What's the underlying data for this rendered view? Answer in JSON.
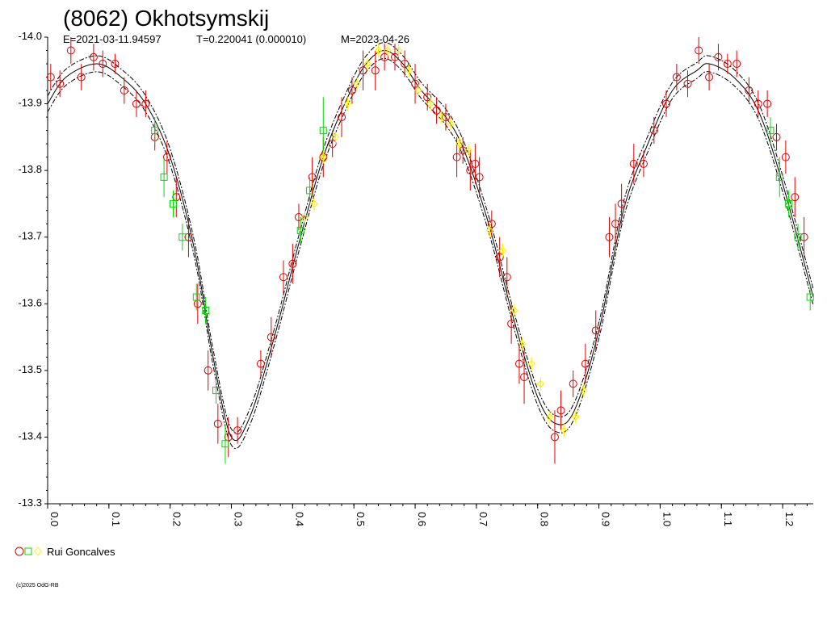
{
  "chart_data": {
    "type": "scatter",
    "title": "(8062) Okhotsymskij",
    "subtitle_parts": [
      "E=2021-03-11.94597",
      "T=0.220041 (0.000010)",
      "M=2023-04-26"
    ],
    "xlabel": "",
    "ylabel": "",
    "x_range": [
      0,
      1.25
    ],
    "y_range": [
      -14.0,
      -13.3
    ],
    "y_inverted": true,
    "x_ticks": [
      "0.0",
      "0.1",
      "0.2",
      "0.3",
      "0.4",
      "0.5",
      "0.6",
      "0.7",
      "0.8",
      "0.9",
      "1.0",
      "1.1",
      "1.2"
    ],
    "y_ticks": [
      "-14.0",
      "-13.9",
      "-13.8",
      "-13.7",
      "-13.6",
      "-13.5",
      "-13.4",
      "-13.3"
    ],
    "legend": {
      "label": "Rui Goncalves",
      "placement": "bottom-left"
    },
    "copyright": "(c)2025 OdG-RB",
    "fit_curve": [
      [
        0.0,
        -13.9
      ],
      [
        0.03,
        -13.94
      ],
      [
        0.08,
        -13.96
      ],
      [
        0.12,
        -13.94
      ],
      [
        0.16,
        -13.9
      ],
      [
        0.2,
        -13.82
      ],
      [
        0.24,
        -13.68
      ],
      [
        0.27,
        -13.52
      ],
      [
        0.3,
        -13.4
      ],
      [
        0.33,
        -13.43
      ],
      [
        0.37,
        -13.55
      ],
      [
        0.41,
        -13.69
      ],
      [
        0.45,
        -13.82
      ],
      [
        0.49,
        -13.91
      ],
      [
        0.52,
        -13.96
      ],
      [
        0.55,
        -13.98
      ],
      [
        0.58,
        -13.96
      ],
      [
        0.61,
        -13.92
      ],
      [
        0.65,
        -13.88
      ],
      [
        0.68,
        -13.83
      ],
      [
        0.72,
        -13.72
      ],
      [
        0.76,
        -13.58
      ],
      [
        0.8,
        -13.46
      ],
      [
        0.83,
        -13.42
      ],
      [
        0.86,
        -13.44
      ],
      [
        0.9,
        -13.56
      ],
      [
        0.94,
        -13.74
      ],
      [
        0.98,
        -13.84
      ],
      [
        1.02,
        -13.92
      ],
      [
        1.06,
        -13.95
      ],
      [
        1.08,
        -13.96
      ],
      [
        1.12,
        -13.94
      ],
      [
        1.16,
        -13.89
      ],
      [
        1.2,
        -13.78
      ],
      [
        1.25,
        -13.61
      ]
    ],
    "band_offset": 0.012,
    "series": [
      {
        "name": "Rui Goncalves",
        "marker": "circle",
        "color": "#dd0000",
        "points": [
          [
            0.005,
            -13.94,
            0.02
          ],
          [
            0.02,
            -13.93,
            0.02
          ],
          [
            0.038,
            -13.98,
            0.02
          ],
          [
            0.055,
            -13.94,
            0.02
          ],
          [
            0.075,
            -13.97,
            0.02
          ],
          [
            0.09,
            -13.96,
            0.02
          ],
          [
            0.11,
            -13.96,
            0.015
          ],
          [
            0.125,
            -13.92,
            0.02
          ],
          [
            0.145,
            -13.9,
            0.02
          ],
          [
            0.16,
            -13.9,
            0.02
          ],
          [
            0.175,
            -13.85,
            0.02
          ],
          [
            0.195,
            -13.82,
            0.025
          ],
          [
            0.21,
            -13.76,
            0.03
          ],
          [
            0.23,
            -13.7,
            0.03
          ],
          [
            0.245,
            -13.6,
            0.03
          ],
          [
            0.262,
            -13.5,
            0.03
          ],
          [
            0.278,
            -13.42,
            0.03
          ],
          [
            0.295,
            -13.4,
            0.03
          ],
          [
            0.31,
            -13.41,
            0.02
          ],
          [
            0.348,
            -13.51,
            0.02
          ],
          [
            0.365,
            -13.55,
            0.03
          ],
          [
            0.385,
            -13.64,
            0.025
          ],
          [
            0.4,
            -13.66,
            0.03
          ],
          [
            0.41,
            -13.73,
            0.02
          ],
          [
            0.432,
            -13.79,
            0.03
          ],
          [
            0.45,
            -13.82,
            0.03
          ],
          [
            0.465,
            -13.84,
            0.02
          ],
          [
            0.48,
            -13.88,
            0.03
          ],
          [
            0.497,
            -13.92,
            0.02
          ],
          [
            0.515,
            -13.95,
            0.03
          ],
          [
            0.535,
            -13.95,
            0.03
          ],
          [
            0.55,
            -13.97,
            0.02
          ],
          [
            0.567,
            -13.97,
            0.02
          ],
          [
            0.583,
            -13.96,
            0.02
          ],
          [
            0.6,
            -13.93,
            0.03
          ],
          [
            0.62,
            -13.91,
            0.02
          ],
          [
            0.635,
            -13.89,
            0.02
          ],
          [
            0.65,
            -13.88,
            0.02
          ],
          [
            0.668,
            -13.82,
            0.03
          ],
          [
            0.678,
            -13.83,
            0.02
          ],
          [
            0.69,
            -13.8,
            0.03
          ],
          [
            0.698,
            -13.81,
            0.03
          ],
          [
            0.705,
            -13.79,
            0.03
          ],
          [
            0.725,
            -13.72,
            0.02
          ],
          [
            0.738,
            -13.67,
            0.03
          ],
          [
            0.75,
            -13.64,
            0.03
          ],
          [
            0.757,
            -13.57,
            0.03
          ],
          [
            0.77,
            -13.51,
            0.03
          ],
          [
            0.778,
            -13.49,
            0.04
          ],
          [
            0.828,
            -13.4,
            0.04
          ],
          [
            0.838,
            -13.44,
            0.03
          ],
          [
            0.858,
            -13.48,
            0.02
          ],
          [
            0.878,
            -13.51,
            0.03
          ],
          [
            0.895,
            -13.56,
            0.03
          ],
          [
            0.917,
            -13.7,
            0.03
          ],
          [
            0.927,
            -13.72,
            0.03
          ],
          [
            0.937,
            -13.75,
            0.03
          ],
          [
            0.957,
            -13.81,
            0.03
          ],
          [
            0.973,
            -13.81,
            0.02
          ],
          [
            0.99,
            -13.86,
            0.02
          ],
          [
            1.01,
            -13.9,
            0.02
          ],
          [
            1.027,
            -13.94,
            0.02
          ],
          [
            1.045,
            -13.93,
            0.02
          ],
          [
            1.063,
            -13.98,
            0.02
          ],
          [
            1.08,
            -13.94,
            0.02
          ],
          [
            1.095,
            -13.97,
            0.02
          ],
          [
            1.11,
            -13.96,
            0.015
          ],
          [
            1.125,
            -13.96,
            0.02
          ],
          [
            1.145,
            -13.92,
            0.02
          ],
          [
            1.16,
            -13.9,
            0.02
          ],
          [
            1.175,
            -13.9,
            0.02
          ],
          [
            1.19,
            -13.85,
            0.02
          ],
          [
            1.205,
            -13.82,
            0.025
          ],
          [
            1.22,
            -13.76,
            0.03
          ],
          [
            1.235,
            -13.7,
            0.03
          ]
        ]
      },
      {
        "name": "Rui Goncalves",
        "marker": "square",
        "color": "#00dd00",
        "points": [
          [
            0.175,
            -13.86,
            0.02
          ],
          [
            0.19,
            -13.79,
            0.03
          ],
          [
            0.205,
            -13.75,
            0.02
          ],
          [
            0.22,
            -13.7,
            0.02
          ],
          [
            0.243,
            -13.61,
            0.02
          ],
          [
            0.258,
            -13.59,
            0.02
          ],
          [
            0.275,
            -13.47,
            0.02
          ],
          [
            0.29,
            -13.39,
            0.03
          ],
          [
            0.413,
            -13.71,
            0.02
          ],
          [
            0.428,
            -13.77,
            0.02
          ],
          [
            0.45,
            -13.86,
            0.05
          ],
          [
            1.18,
            -13.86,
            0.02
          ],
          [
            1.195,
            -13.79,
            0.03
          ],
          [
            1.21,
            -13.75,
            0.02
          ],
          [
            1.225,
            -13.7,
            0.02
          ],
          [
            1.245,
            -13.61,
            0.02
          ]
        ]
      },
      {
        "name": "Rui Goncalves",
        "marker": "diamond",
        "color": "#ffee00",
        "points": [
          [
            0.42,
            -13.73,
            0.01
          ],
          [
            0.435,
            -13.75,
            0.01
          ],
          [
            0.45,
            -13.82,
            0.01
          ],
          [
            0.47,
            -13.85,
            0.01
          ],
          [
            0.49,
            -13.9,
            0.01
          ],
          [
            0.505,
            -13.93,
            0.01
          ],
          [
            0.522,
            -13.96,
            0.01
          ],
          [
            0.54,
            -13.98,
            0.01
          ],
          [
            0.555,
            -13.98,
            0.01
          ],
          [
            0.573,
            -13.98,
            0.01
          ],
          [
            0.59,
            -13.95,
            0.01
          ],
          [
            0.605,
            -13.92,
            0.01
          ],
          [
            0.625,
            -13.9,
            0.01
          ],
          [
            0.643,
            -13.88,
            0.01
          ],
          [
            0.658,
            -13.87,
            0.01
          ],
          [
            0.672,
            -13.84,
            0.01
          ],
          [
            0.687,
            -13.83,
            0.01
          ],
          [
            0.722,
            -13.71,
            0.01
          ],
          [
            0.743,
            -13.68,
            0.01
          ],
          [
            0.762,
            -13.59,
            0.01
          ],
          [
            0.775,
            -13.54,
            0.01
          ],
          [
            0.79,
            -13.51,
            0.01
          ],
          [
            0.805,
            -13.48,
            0.01
          ],
          [
            0.82,
            -13.43,
            0.01
          ],
          [
            0.843,
            -13.41,
            0.01
          ],
          [
            0.862,
            -13.43,
            0.01
          ],
          [
            0.875,
            -13.47,
            0.01
          ]
        ]
      }
    ]
  }
}
